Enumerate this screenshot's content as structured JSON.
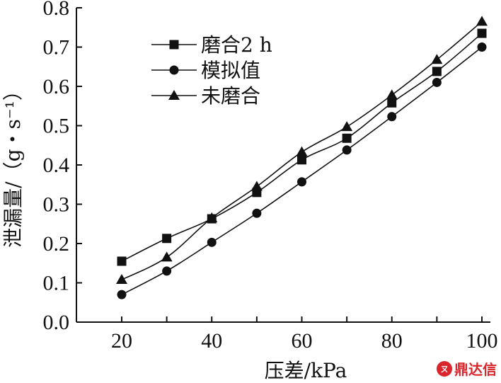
{
  "chart_data": {
    "type": "line",
    "xlabel": "压差/kPa",
    "ylabel": "泄漏量/（g・s⁻¹）",
    "xlim": [
      20,
      100
    ],
    "ylim": [
      0.0,
      0.8
    ],
    "x_ticks": [
      "20",
      "40",
      "60",
      "80",
      "100"
    ],
    "y_ticks": [
      "0.0",
      "0.1",
      "0.2",
      "0.3",
      "0.4",
      "0.5",
      "0.6",
      "0.7",
      "0.8"
    ],
    "grid": false,
    "legend_position": "top-left",
    "x": [
      20,
      30,
      40,
      50,
      60,
      70,
      80,
      90,
      100
    ],
    "series": [
      {
        "name": "磨合2 h",
        "marker": "square",
        "values": [
          0.155,
          0.213,
          0.263,
          0.33,
          0.413,
          0.468,
          0.558,
          0.638,
          0.735
        ]
      },
      {
        "name": "模拟值",
        "marker": "circle",
        "values": [
          0.07,
          0.13,
          0.203,
          0.277,
          0.357,
          0.438,
          0.523,
          0.61,
          0.7
        ]
      },
      {
        "name": "未磨合",
        "marker": "triangle",
        "values": [
          0.108,
          0.165,
          0.265,
          0.345,
          0.433,
          0.497,
          0.578,
          0.668,
          0.765
        ]
      }
    ]
  },
  "watermark": {
    "text": "鼎达信",
    "badge": "ㄡ",
    "color": "#d9252c"
  }
}
